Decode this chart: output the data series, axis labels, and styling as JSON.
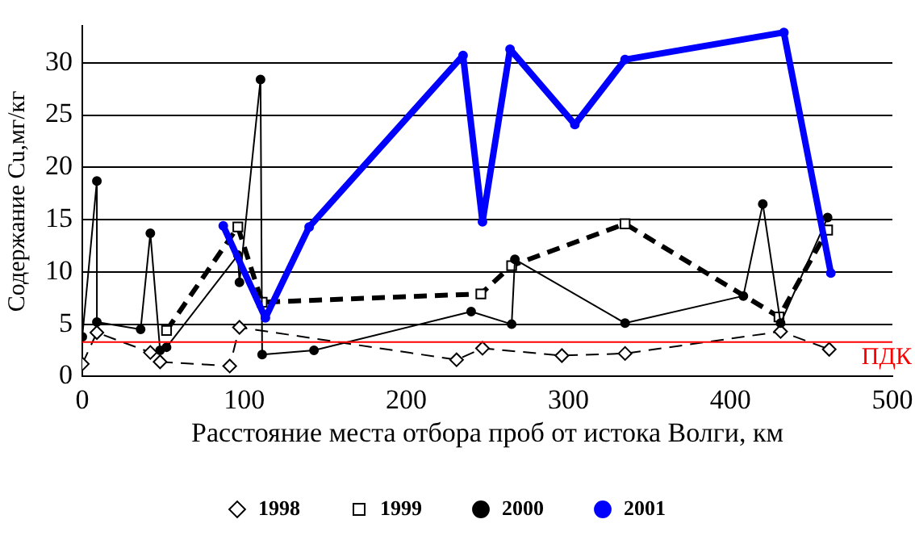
{
  "chart_data": {
    "type": "line",
    "xlabel": "Расстояние места отбора проб от истока Волги, км",
    "ylabel": "Содержание Cu,мг/кг",
    "xlim": [
      0,
      500
    ],
    "xticks": [
      0,
      100,
      200,
      300,
      400,
      500
    ],
    "ylim": [
      0,
      33.5
    ],
    "yticks": [
      0,
      5,
      10,
      15,
      20,
      25,
      30
    ],
    "grid": "y",
    "legend": "bottom",
    "series": [
      {
        "name": "1998",
        "color": "#000000",
        "marker": "diamond",
        "line_style": "dashed",
        "x": [
          0,
          9,
          42,
          48,
          91,
          97,
          231,
          247,
          296,
          335,
          431,
          461
        ],
        "values": [
          1.2,
          4.2,
          2.3,
          1.4,
          1.0,
          4.7,
          1.6,
          2.7,
          2.0,
          2.2,
          4.3,
          2.6
        ]
      },
      {
        "name": "1999",
        "color": "#000000",
        "marker": "square",
        "line_style": "dashed",
        "x": [
          52,
          96,
          111,
          246,
          265,
          335,
          430,
          460
        ],
        "values": [
          4.4,
          14.3,
          7.1,
          7.9,
          10.6,
          14.6,
          5.7,
          14.0
        ]
      },
      {
        "name": "2000",
        "color": "#000000",
        "marker": "circle",
        "line_style": "solid",
        "x": [
          0,
          9,
          9,
          36,
          42,
          48,
          52,
          96,
          97,
          110,
          111,
          143,
          240,
          265,
          267,
          335,
          408,
          420,
          431,
          460
        ],
        "values": [
          3.8,
          18.7,
          5.2,
          4.5,
          13.7,
          2.5,
          2.8,
          11.6,
          9.0,
          28.4,
          2.1,
          2.5,
          6.2,
          5.0,
          11.2,
          5.1,
          7.7,
          16.5,
          5.1,
          15.2
        ]
      },
      {
        "name": "2001",
        "color": "#0000ff",
        "marker": "circle",
        "line_style": "solid",
        "x": [
          87,
          113,
          140,
          235,
          247,
          264,
          304,
          335,
          433,
          462
        ],
        "values": [
          14.4,
          5.6,
          14.3,
          30.7,
          14.8,
          31.3,
          24.1,
          30.3,
          32.9,
          9.9
        ]
      }
    ],
    "ref_lines": [
      {
        "axis": "y",
        "value": 3.3,
        "label": "ПДК",
        "color": "#ff0000"
      }
    ]
  }
}
